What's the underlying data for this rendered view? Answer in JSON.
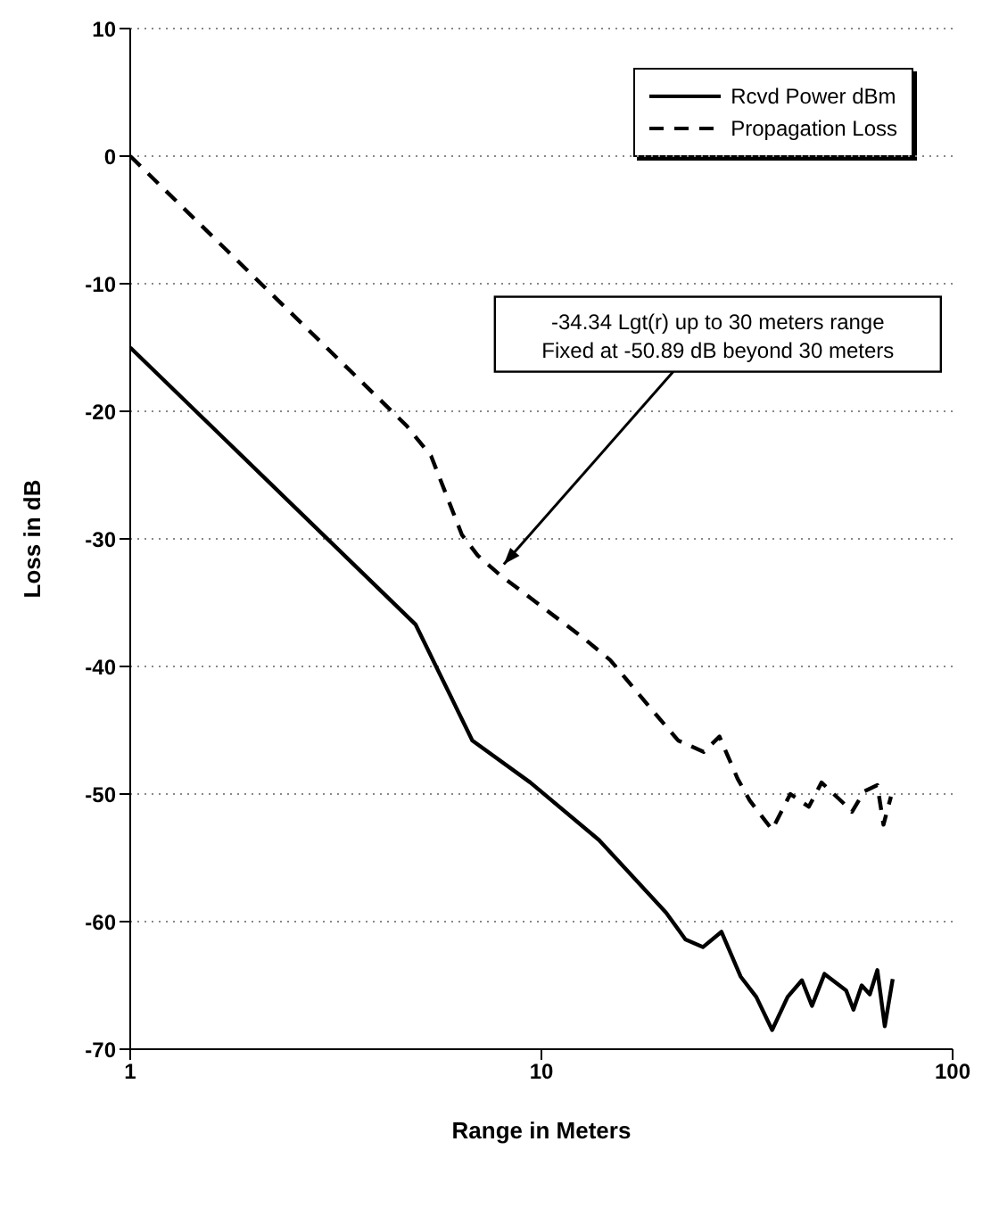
{
  "chart_data": {
    "type": "line",
    "xlabel": "Range in Meters",
    "ylabel": "Loss in dB",
    "log": "x",
    "xlim": [
      1,
      100
    ],
    "xticks": [
      1,
      10,
      100
    ],
    "ylim": [
      -70,
      10
    ],
    "yticks": [
      -70,
      -60,
      -50,
      -40,
      -30,
      -20,
      -10,
      0,
      10
    ],
    "grid": "y",
    "legend": "top right",
    "marker": "none",
    "series": [
      {
        "name": "Rcvd Power dBm",
        "color": "#000000",
        "line_style": "solid",
        "x": [
          1,
          4.94,
          6.79,
          9.4,
          13.8,
          20.1,
          22.4,
          24.7,
          27.4,
          30.5,
          33.3,
          36.4,
          39.7,
          43,
          45.5,
          48.8,
          55.1,
          57.4,
          60.1,
          62.9,
          65.6,
          68.4,
          71.5
        ],
        "values": [
          -15,
          -36.7,
          -45.8,
          -49.1,
          -53.6,
          -59.3,
          -61.4,
          -62,
          -60.8,
          -64.3,
          -65.9,
          -68.5,
          -65.9,
          -64.6,
          -66.6,
          -64.1,
          -65.4,
          -66.9,
          -65,
          -65.7,
          -63.8,
          -68.2,
          -64.5
        ]
      },
      {
        "name": "Propagation Loss",
        "color": "#000000",
        "line_style": "dashed",
        "x": [
          1,
          4.69,
          5.39,
          6.41,
          7,
          7.91,
          12.8,
          14.7,
          18.8,
          21.5,
          24.8,
          27.1,
          30,
          32.1,
          36.4,
          40.3,
          44.7,
          48,
          54.2,
          56.9,
          60.9,
          65.6,
          67.9,
          70.8
        ],
        "values": [
          0,
          -21.1,
          -23.5,
          -29.7,
          -31.3,
          -32.8,
          -37.9,
          -39.5,
          -43.6,
          -45.8,
          -46.7,
          -45.5,
          -48.8,
          -50.5,
          -52.8,
          -50,
          -51,
          -49.1,
          -50.7,
          -51.4,
          -49.8,
          -49.3,
          -52.4,
          -50.2
        ]
      }
    ],
    "annotations": [
      {
        "text": "-34.34 Lgt(r) up to 30 meters range\nFixed at -50.89 dB beyond 30 meters",
        "x": 8.1,
        "y": -32
      }
    ]
  }
}
